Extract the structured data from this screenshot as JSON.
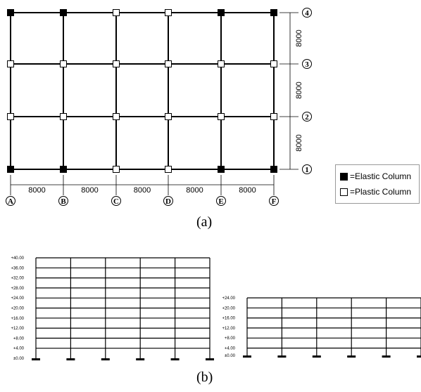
{
  "plan": {
    "axis_letters": [
      "A",
      "B",
      "C",
      "D",
      "E",
      "F"
    ],
    "axis_numbers": [
      "1",
      "2",
      "3",
      "4"
    ],
    "span_labels_x": [
      "8000",
      "8000",
      "8000",
      "8000",
      "8000"
    ],
    "span_labels_y": [
      "8000",
      "8000",
      "8000"
    ],
    "elastic_nodes": [
      "A1",
      "A4",
      "B1",
      "B4",
      "E1",
      "E4",
      "F1",
      "F4"
    ],
    "plastic_nodes": [
      "A2",
      "A3",
      "B2",
      "B3",
      "C1",
      "C2",
      "C3",
      "C4",
      "D1",
      "D2",
      "D3",
      "D4",
      "E2",
      "E3",
      "F2",
      "F3"
    ]
  },
  "legend": {
    "elastic_label": "=Elastic Column",
    "plastic_label": "=Plastic Column",
    "elastic_color": "#000000",
    "plastic_color": "#ffffff"
  },
  "elevation_10": {
    "levels": [
      "+40.00",
      "+36.00",
      "+32.00",
      "+28.00",
      "+24.00",
      "+20.00",
      "+16.00",
      "+12.00",
      "+8.00",
      "+4.00",
      "±0.00"
    ]
  },
  "elevation_6": {
    "levels": [
      "+24.00",
      "+20.00",
      "+16.00",
      "+12.00",
      "+8.00",
      "+4.00",
      "±0.00"
    ]
  },
  "captions": {
    "a": "(a)",
    "b": "(b)"
  }
}
